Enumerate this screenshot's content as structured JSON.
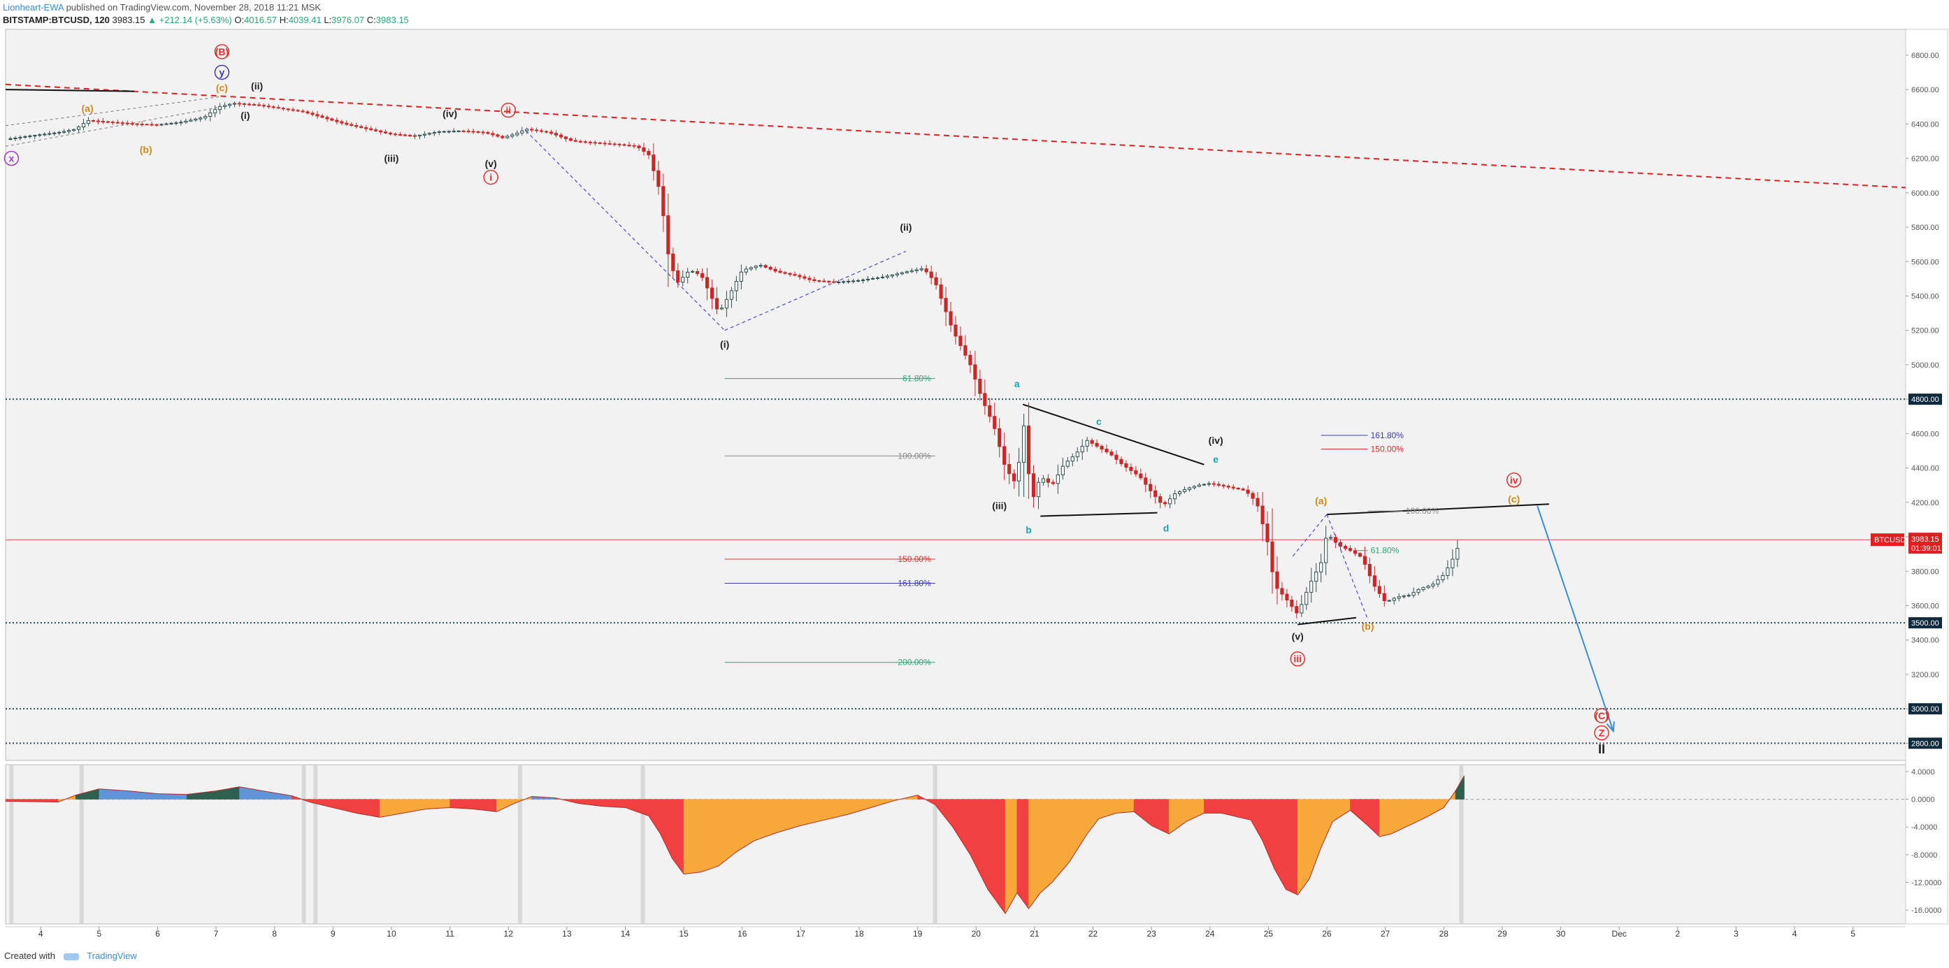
{
  "header": {
    "author": "Lionheart-EWA",
    "published": "published on TradingView.com, November 28, 2018 11:21 MSK",
    "symbol": "BITSTAMP:BTCUSD, 120",
    "last": "3983.15",
    "change": "▲ +212.14 (+5.63%)",
    "o_label": "O:",
    "o": "4016.57",
    "h_label": "H:",
    "h": "4039.41",
    "l_label": "L:",
    "l": "3976.07",
    "c_label": "C:",
    "c": "3983.15"
  },
  "footer": {
    "created_with": "Created with",
    "brand": "TradingView"
  },
  "colors": {
    "bg": "#f2f2f2",
    "up": "#2f4f4f",
    "down": "#c82828",
    "trendline": "#e02020",
    "channel": "#4a4ad0",
    "fib_green": "#2aa876",
    "fib_gray": "#888888",
    "fib_red": "#e03030",
    "fib_blue": "#3a3ab0",
    "osc_red": "#f04040",
    "osc_orange": "#f7a83a",
    "osc_green": "#2f5f4f",
    "osc_blue": "#5f95d8",
    "projection": "#3a8dd6"
  },
  "chart_data": {
    "type": "candlestick",
    "symbol": "BITSTAMP:BTCUSD",
    "interval": "120",
    "price_axis": {
      "ticks": [
        "6800.00",
        "6600.00",
        "6400.00",
        "6200.00",
        "6000.00",
        "5800.00",
        "5600.00",
        "5400.00",
        "5200.00",
        "5000.00",
        "4800.00",
        "4600.00",
        "4400.00",
        "4200.00",
        "4000.00",
        "3800.00",
        "3600.00",
        "3400.00",
        "3200.00",
        "3000.00",
        "2800.00"
      ],
      "ylim": [
        2700,
        6950
      ],
      "highlighted_levels": [
        {
          "value": 4800,
          "label": "4800.00"
        },
        {
          "value": 3500,
          "label": "3500.00"
        },
        {
          "value": 3000,
          "label": "3000.00"
        },
        {
          "value": 2800,
          "label": "2800.00"
        }
      ],
      "current_price": {
        "value": 3983.15,
        "label": "BTCUSD",
        "price": "3983.15",
        "countdown": "01:39:01"
      }
    },
    "time_axis": {
      "ticks": [
        "4",
        "5",
        "6",
        "7",
        "8",
        "9",
        "10",
        "11",
        "12",
        "13",
        "14",
        "15",
        "16",
        "17",
        "18",
        "19",
        "20",
        "21",
        "22",
        "23",
        "24",
        "25",
        "26",
        "27",
        "28",
        "29",
        "30",
        "Dec",
        "2",
        "3",
        "4",
        "5"
      ],
      "xlim": [
        3.4,
        35.9
      ]
    },
    "price_path": [
      [
        3.4,
        6310
      ],
      [
        3.8,
        6330
      ],
      [
        4.3,
        6350
      ],
      [
        4.6,
        6370
      ],
      [
        4.8,
        6420
      ],
      [
        5.2,
        6410
      ],
      [
        5.6,
        6400
      ],
      [
        6.0,
        6395
      ],
      [
        6.4,
        6410
      ],
      [
        6.8,
        6440
      ],
      [
        7.05,
        6500
      ],
      [
        7.3,
        6520
      ],
      [
        7.7,
        6510
      ],
      [
        8.1,
        6490
      ],
      [
        8.5,
        6470
      ],
      [
        8.8,
        6440
      ],
      [
        9.2,
        6400
      ],
      [
        9.6,
        6370
      ],
      [
        10.0,
        6340
      ],
      [
        10.4,
        6330
      ],
      [
        10.8,
        6355
      ],
      [
        11.2,
        6360
      ],
      [
        11.6,
        6350
      ],
      [
        11.9,
        6320
      ],
      [
        12.1,
        6340
      ],
      [
        12.3,
        6370
      ],
      [
        12.7,
        6350
      ],
      [
        13.1,
        6300
      ],
      [
        13.5,
        6290
      ],
      [
        13.9,
        6280
      ],
      [
        14.2,
        6270
      ],
      [
        14.4,
        6220
      ],
      [
        14.6,
        6000
      ],
      [
        14.75,
        5600
      ],
      [
        14.9,
        5480
      ],
      [
        15.1,
        5550
      ],
      [
        15.3,
        5520
      ],
      [
        15.6,
        5300
      ],
      [
        15.8,
        5420
      ],
      [
        16.0,
        5550
      ],
      [
        16.3,
        5580
      ],
      [
        16.6,
        5540
      ],
      [
        16.9,
        5520
      ],
      [
        17.2,
        5490
      ],
      [
        17.6,
        5480
      ],
      [
        18.0,
        5490
      ],
      [
        18.4,
        5510
      ],
      [
        18.8,
        5540
      ],
      [
        19.1,
        5560
      ],
      [
        19.3,
        5480
      ],
      [
        19.6,
        5200
      ],
      [
        19.9,
        5000
      ],
      [
        20.1,
        4800
      ],
      [
        20.3,
        4650
      ],
      [
        20.5,
        4400
      ],
      [
        20.7,
        4300
      ],
      [
        20.8,
        4700
      ],
      [
        20.95,
        4200
      ],
      [
        21.1,
        4350
      ],
      [
        21.3,
        4300
      ],
      [
        21.5,
        4420
      ],
      [
        21.7,
        4480
      ],
      [
        21.9,
        4560
      ],
      [
        22.1,
        4520
      ],
      [
        22.3,
        4480
      ],
      [
        22.5,
        4420
      ],
      [
        22.8,
        4350
      ],
      [
        23.0,
        4260
      ],
      [
        23.2,
        4180
      ],
      [
        23.4,
        4250
      ],
      [
        23.6,
        4280
      ],
      [
        23.8,
        4300
      ],
      [
        24.0,
        4310
      ],
      [
        24.3,
        4290
      ],
      [
        24.6,
        4270
      ],
      [
        24.8,
        4200
      ],
      [
        25.0,
        3950
      ],
      [
        25.1,
        3720
      ],
      [
        25.3,
        3640
      ],
      [
        25.5,
        3550
      ],
      [
        25.7,
        3720
      ],
      [
        25.9,
        3850
      ],
      [
        26.0,
        4020
      ],
      [
        26.2,
        3950
      ],
      [
        26.4,
        3920
      ],
      [
        26.6,
        3880
      ],
      [
        26.8,
        3720
      ],
      [
        27.0,
        3620
      ],
      [
        27.2,
        3650
      ],
      [
        27.4,
        3660
      ],
      [
        27.6,
        3700
      ],
      [
        27.8,
        3720
      ],
      [
        28.0,
        3780
      ],
      [
        28.15,
        3870
      ],
      [
        28.3,
        3983
      ]
    ],
    "trendlines": [
      {
        "style": "dashed-red",
        "from": [
          3.4,
          6630
        ],
        "to": [
          35.9,
          6030
        ]
      },
      {
        "style": "solid-black",
        "from": [
          20.8,
          4770
        ],
        "to": [
          23.9,
          4420
        ]
      },
      {
        "style": "solid-black",
        "from": [
          21.1,
          4120
        ],
        "to": [
          23.1,
          4140
        ]
      },
      {
        "style": "solid-black",
        "from": [
          26.0,
          4130
        ],
        "to": [
          29.8,
          4190
        ]
      },
      {
        "style": "solid-black",
        "from": [
          25.5,
          3490
        ],
        "to": [
          26.5,
          3530
        ]
      },
      {
        "style": "solid-black",
        "from": [
          3.4,
          6600
        ],
        "to": [
          5.6,
          6590
        ]
      },
      {
        "style": "dashed-gray",
        "from": [
          3.4,
          6270
        ],
        "to": [
          7.1,
          6500
        ]
      },
      {
        "style": "dashed-gray",
        "from": [
          3.4,
          6390
        ],
        "to": [
          7.1,
          6560
        ]
      },
      {
        "style": "dashed-blue",
        "from": [
          12.3,
          6360
        ],
        "to": [
          15.7,
          5200
        ]
      },
      {
        "style": "dashed-blue",
        "from": [
          15.7,
          5200
        ],
        "to": [
          18.8,
          5660
        ]
      },
      {
        "style": "dashed-blue",
        "from": [
          26.0,
          4130
        ],
        "to": [
          26.7,
          3520
        ]
      },
      {
        "style": "dashed-blue",
        "from": [
          26.0,
          4130
        ],
        "to": [
          25.4,
          3880
        ]
      }
    ],
    "projection_arrow": {
      "from": [
        29.6,
        4180
      ],
      "to": [
        30.9,
        2870
      ]
    },
    "fib_levels": [
      {
        "label": "61.80%",
        "value": 4920,
        "x": [
          15.7,
          19.3
        ],
        "color": "green"
      },
      {
        "label": "100.00%",
        "value": 4470,
        "x": [
          15.7,
          19.3
        ],
        "color": "gray"
      },
      {
        "label": "150.00%",
        "value": 3870,
        "x": [
          15.7,
          19.3
        ],
        "color": "red"
      },
      {
        "label": "161.80%",
        "value": 3730,
        "x": [
          15.7,
          19.3
        ],
        "color": "blue"
      },
      {
        "label": "200.00%",
        "value": 3270,
        "x": [
          15.7,
          19.3
        ],
        "color": "green"
      },
      {
        "label": "161.80%",
        "value": 4590,
        "x": [
          25.9,
          26.7
        ],
        "color": "blue"
      },
      {
        "label": "150.00%",
        "value": 4510,
        "x": [
          25.9,
          26.7
        ],
        "color": "red"
      },
      {
        "label": "100.00%",
        "value": 4150,
        "x": [
          26.7,
          27.3
        ],
        "color": "gray"
      },
      {
        "label": "61.80%",
        "value": 3920,
        "x": [
          26.5,
          26.7
        ],
        "color": "green"
      }
    ],
    "wave_labels": [
      {
        "text": "(a)",
        "x": 4.8,
        "y": 6470,
        "color": "orange",
        "circled": false
      },
      {
        "text": "(b)",
        "x": 5.8,
        "y": 6230,
        "color": "orange",
        "circled": false
      },
      {
        "text": "x",
        "x": 3.5,
        "y": 6180,
        "color": "purple",
        "circled": true
      },
      {
        "text": "(B)",
        "x": 7.1,
        "y": 6800,
        "color": "red",
        "circled": true
      },
      {
        "text": "y",
        "x": 7.1,
        "y": 6680,
        "color": "blue",
        "circled": true
      },
      {
        "text": "(c)",
        "x": 7.1,
        "y": 6590,
        "color": "orange",
        "circled": false
      },
      {
        "text": "(ii)",
        "x": 7.7,
        "y": 6600,
        "color": "black",
        "circled": false
      },
      {
        "text": "(i)",
        "x": 7.5,
        "y": 6430,
        "color": "black",
        "circled": false
      },
      {
        "text": "(iv)",
        "x": 11.0,
        "y": 6440,
        "color": "black",
        "circled": false
      },
      {
        "text": "(iii)",
        "x": 10.0,
        "y": 6180,
        "color": "black",
        "circled": false
      },
      {
        "text": "(v)",
        "x": 11.7,
        "y": 6150,
        "color": "black",
        "circled": false
      },
      {
        "text": "i",
        "x": 11.7,
        "y": 6070,
        "color": "red",
        "circled": true
      },
      {
        "text": "ii",
        "x": 12.0,
        "y": 6460,
        "color": "red",
        "circled": true
      },
      {
        "text": "(ii)",
        "x": 18.8,
        "y": 5780,
        "color": "black",
        "circled": false
      },
      {
        "text": "(i)",
        "x": 15.7,
        "y": 5100,
        "color": "black",
        "circled": false
      },
      {
        "text": "a",
        "x": 20.7,
        "y": 4870,
        "color": "teal",
        "circled": false
      },
      {
        "text": "b",
        "x": 20.9,
        "y": 4020,
        "color": "teal",
        "circled": false
      },
      {
        "text": "c",
        "x": 22.1,
        "y": 4650,
        "color": "teal",
        "circled": false
      },
      {
        "text": "d",
        "x": 23.25,
        "y": 4030,
        "color": "teal",
        "circled": false
      },
      {
        "text": "e",
        "x": 24.1,
        "y": 4430,
        "color": "teal",
        "circled": false
      },
      {
        "text": "(iv)",
        "x": 24.1,
        "y": 4540,
        "color": "black",
        "circled": false
      },
      {
        "text": "(iii)",
        "x": 20.4,
        "y": 4160,
        "color": "black",
        "circled": false
      },
      {
        "text": "(v)",
        "x": 25.5,
        "y": 3400,
        "color": "black",
        "circled": false
      },
      {
        "text": "iii",
        "x": 25.5,
        "y": 3270,
        "color": "red",
        "circled": true
      },
      {
        "text": "(a)",
        "x": 25.9,
        "y": 4190,
        "color": "orange",
        "circled": false
      },
      {
        "text": "(b)",
        "x": 26.7,
        "y": 3460,
        "color": "orange",
        "circled": false
      },
      {
        "text": "iv",
        "x": 29.2,
        "y": 4310,
        "color": "red",
        "circled": true
      },
      {
        "text": "(c)",
        "x": 29.2,
        "y": 4200,
        "color": "orange",
        "circled": false
      },
      {
        "text": "(C)",
        "x": 30.7,
        "y": 2940,
        "color": "red",
        "circled": true
      },
      {
        "text": "Z",
        "x": 30.7,
        "y": 2840,
        "color": "red",
        "circled": true
      },
      {
        "text": "II",
        "x": 30.7,
        "y": 2740,
        "color": "black",
        "circled": false
      }
    ],
    "oscillator": {
      "type": "area",
      "ticks": [
        "4.0000",
        "0.0000",
        "-4.0000",
        "-8.0000",
        "-12.0000",
        "-16.0000"
      ],
      "ylim": [
        -18,
        5
      ],
      "zero_line": true,
      "values": [
        [
          3.4,
          -0.3
        ],
        [
          4.3,
          -0.4
        ],
        [
          4.6,
          0.6
        ],
        [
          5.0,
          1.5
        ],
        [
          5.5,
          1.2
        ],
        [
          6.0,
          0.8
        ],
        [
          6.5,
          0.7
        ],
        [
          7.0,
          1.2
        ],
        [
          7.4,
          1.8
        ],
        [
          7.8,
          1.2
        ],
        [
          8.3,
          0.5
        ],
        [
          8.6,
          -0.4
        ],
        [
          9.0,
          -1.2
        ],
        [
          9.4,
          -2.0
        ],
        [
          9.8,
          -2.6
        ],
        [
          10.2,
          -2.0
        ],
        [
          10.6,
          -1.4
        ],
        [
          11.0,
          -1.2
        ],
        [
          11.4,
          -1.4
        ],
        [
          11.8,
          -1.8
        ],
        [
          12.1,
          -0.6
        ],
        [
          12.4,
          0.4
        ],
        [
          12.8,
          0.2
        ],
        [
          13.2,
          -0.6
        ],
        [
          13.6,
          -1.0
        ],
        [
          14.0,
          -1.2
        ],
        [
          14.4,
          -2.4
        ],
        [
          14.6,
          -5.0
        ],
        [
          14.8,
          -8.5
        ],
        [
          15.0,
          -10.8
        ],
        [
          15.3,
          -10.5
        ],
        [
          15.6,
          -9.6
        ],
        [
          15.9,
          -7.6
        ],
        [
          16.2,
          -6.0
        ],
        [
          16.6,
          -4.8
        ],
        [
          17.0,
          -3.8
        ],
        [
          17.4,
          -3.0
        ],
        [
          17.8,
          -2.2
        ],
        [
          18.2,
          -1.2
        ],
        [
          18.6,
          -0.2
        ],
        [
          19.0,
          0.6
        ],
        [
          19.3,
          -0.8
        ],
        [
          19.6,
          -4.0
        ],
        [
          19.9,
          -8.0
        ],
        [
          20.2,
          -13.0
        ],
        [
          20.5,
          -16.5
        ],
        [
          20.7,
          -13.5
        ],
        [
          20.9,
          -15.8
        ],
        [
          21.1,
          -13.5
        ],
        [
          21.3,
          -12.0
        ],
        [
          21.6,
          -9.0
        ],
        [
          21.9,
          -5.0
        ],
        [
          22.1,
          -2.8
        ],
        [
          22.4,
          -2.0
        ],
        [
          22.7,
          -1.8
        ],
        [
          23.0,
          -3.8
        ],
        [
          23.3,
          -5.0
        ],
        [
          23.6,
          -3.2
        ],
        [
          23.9,
          -2.0
        ],
        [
          24.2,
          -2.0
        ],
        [
          24.5,
          -2.6
        ],
        [
          24.7,
          -3.0
        ],
        [
          24.9,
          -6.0
        ],
        [
          25.1,
          -10.0
        ],
        [
          25.3,
          -13.0
        ],
        [
          25.5,
          -13.8
        ],
        [
          25.7,
          -11.5
        ],
        [
          25.9,
          -7.0
        ],
        [
          26.1,
          -3.2
        ],
        [
          26.4,
          -1.6
        ],
        [
          26.7,
          -3.8
        ],
        [
          26.9,
          -5.4
        ],
        [
          27.1,
          -5.0
        ],
        [
          27.4,
          -3.8
        ],
        [
          27.7,
          -2.6
        ],
        [
          28.0,
          -1.2
        ],
        [
          28.2,
          1.2
        ],
        [
          28.35,
          3.4
        ]
      ],
      "sessions": [
        3.5,
        4.7,
        8.5,
        8.7,
        12.2,
        14.3,
        19.3,
        28.3
      ]
    }
  }
}
